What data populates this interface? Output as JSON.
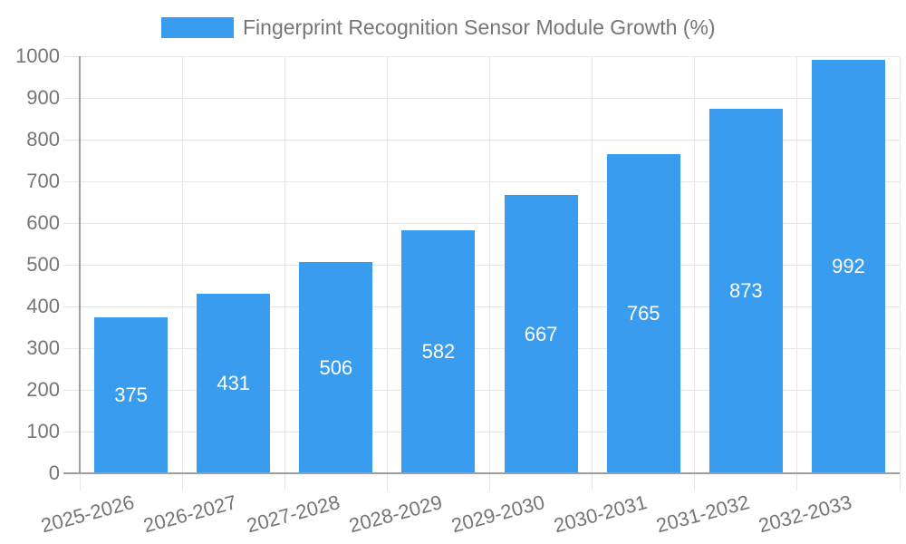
{
  "chart_data": {
    "type": "bar",
    "title": "Fingerprint Recognition Sensor Module Growth (%)",
    "legend": {
      "label": "Fingerprint Recognition Sensor Module Growth (%)",
      "position": "top-center"
    },
    "categories": [
      "2025-2026",
      "2026-2027",
      "2027-2028",
      "2028-2029",
      "2029-2030",
      "2030-2031",
      "2031-2032",
      "2032-2033"
    ],
    "values": [
      375,
      431,
      506,
      582,
      667,
      765,
      873,
      992
    ],
    "xlabel": "",
    "ylabel": "",
    "ylim": [
      0,
      1000
    ],
    "yticks": [
      0,
      100,
      200,
      300,
      400,
      500,
      600,
      700,
      800,
      900,
      1000
    ],
    "grid": true,
    "x_tick_rotation_deg": -15,
    "bar_value_labels_inside": true,
    "colors": {
      "bar": "#3a9cee",
      "bar_label_text": "#ffffff",
      "axis_text": "#757575",
      "grid_line": "#e6e6e6",
      "axis_line": "#9e9e9e",
      "background": "#ffffff"
    }
  }
}
